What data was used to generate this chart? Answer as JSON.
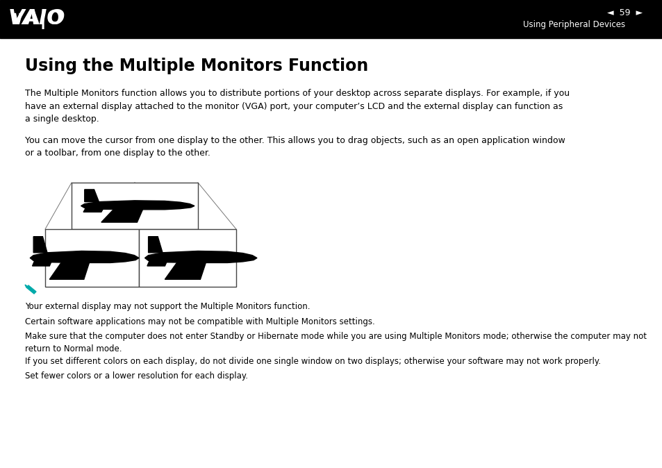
{
  "bg_color": "#ffffff",
  "header_bg": "#000000",
  "title": "Using the Multiple Monitors Function",
  "title_fontsize": 17,
  "body_fontsize": 9.0,
  "body_para1": "The Multiple Monitors function allows you to distribute portions of your desktop across separate displays. For example, if you\nhave an external display attached to the monitor (VGA) port, your computer’s LCD and the external display can function as\na single desktop.",
  "body_para2": "You can move the cursor from one display to the other. This allows you to drag objects, such as an open application window\nor a toolbar, from one display to the other.",
  "note_color": "#00aaaa",
  "note1": "Your external display may not support the Multiple Monitors function.",
  "note2": "Certain software applications may not be compatible with Multiple Monitors settings.",
  "note3": "Make sure that the computer does not enter Standby or Hibernate mode while you are using Multiple Monitors mode; otherwise the computer may not\nreturn to Normal mode.",
  "note4": "If you set different colors on each display, do not divide one single window on two displays; otherwise your software may not work properly.",
  "note5": "Set fewer colors or a lower resolution for each display.",
  "note_fontsize": 8.5,
  "page_number": "59",
  "header_text": "Using Peripheral Devices"
}
